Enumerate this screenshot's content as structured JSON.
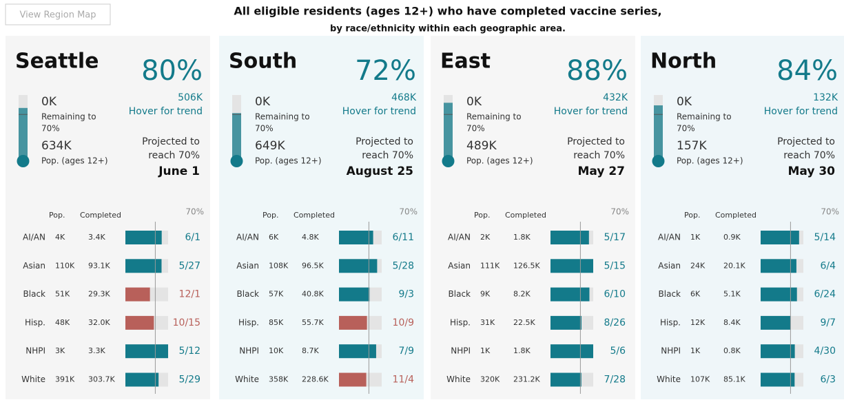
{
  "header": {
    "button": "View Region Map",
    "title": "All eligible residents (ages 12+) who have completed vaccine series,",
    "subtitle": "by race/ethnicity within each geographic area."
  },
  "labels": {
    "hover": "Hover for trend",
    "remaining": "Remaining to",
    "pop_ages": "Pop. (ages 12+)",
    "projected": "Projected to",
    "reach": "reach 70%",
    "pop": "Pop.",
    "completed": "Completed"
  },
  "target": {
    "value": 70,
    "label": "70%"
  },
  "colors": {
    "on_track": "#137a8a",
    "late": "#b8605a",
    "track": "#e4e4e4"
  },
  "regions": [
    {
      "name": "Seattle",
      "pct": 80,
      "pct_label": "80%",
      "remaining": "0K",
      "completed_total": "506K",
      "population": "634K",
      "date": "June 1",
      "background": "#f5f5f5",
      "rows": [
        {
          "group": "AI/AN",
          "pop": 4000,
          "pop_label": "4K",
          "completed": 3400,
          "completed_label": "3.4K",
          "date": "6/1",
          "status": "on_track"
        },
        {
          "group": "Asian",
          "pop": 110000,
          "pop_label": "110K",
          "completed": 93100,
          "completed_label": "93.1K",
          "date": "5/27",
          "status": "on_track"
        },
        {
          "group": "Black",
          "pop": 51000,
          "pop_label": "51K",
          "completed": 29300,
          "completed_label": "29.3K",
          "date": "12/1",
          "status": "late"
        },
        {
          "group": "Hisp.",
          "pop": 48000,
          "pop_label": "48K",
          "completed": 32000,
          "completed_label": "32.0K",
          "date": "10/15",
          "status": "late"
        },
        {
          "group": "NHPI",
          "pop": 3000,
          "pop_label": "3K",
          "completed": 3300,
          "completed_label": "3.3K",
          "date": "5/12",
          "status": "on_track"
        },
        {
          "group": "White",
          "pop": 391000,
          "pop_label": "391K",
          "completed": 303700,
          "completed_label": "303.7K",
          "date": "5/29",
          "status": "on_track"
        }
      ]
    },
    {
      "name": "South",
      "pct": 72,
      "pct_label": "72%",
      "remaining": "0K",
      "completed_total": "468K",
      "population": "649K",
      "date": "August 25",
      "background": "#eff7f9",
      "rows": [
        {
          "group": "AI/AN",
          "pop": 6000,
          "pop_label": "6K",
          "completed": 4800,
          "completed_label": "4.8K",
          "date": "6/11",
          "status": "on_track"
        },
        {
          "group": "Asian",
          "pop": 108000,
          "pop_label": "108K",
          "completed": 96500,
          "completed_label": "96.5K",
          "date": "5/28",
          "status": "on_track"
        },
        {
          "group": "Black",
          "pop": 57000,
          "pop_label": "57K",
          "completed": 40800,
          "completed_label": "40.8K",
          "date": "9/3",
          "status": "on_track"
        },
        {
          "group": "Hisp.",
          "pop": 85000,
          "pop_label": "85K",
          "completed": 55700,
          "completed_label": "55.7K",
          "date": "10/9",
          "status": "late"
        },
        {
          "group": "NHPI",
          "pop": 10000,
          "pop_label": "10K",
          "completed": 8700,
          "completed_label": "8.7K",
          "date": "7/9",
          "status": "on_track"
        },
        {
          "group": "White",
          "pop": 358000,
          "pop_label": "358K",
          "completed": 228600,
          "completed_label": "228.6K",
          "date": "11/4",
          "status": "late"
        }
      ]
    },
    {
      "name": "East",
      "pct": 88,
      "pct_label": "88%",
      "remaining": "0K",
      "completed_total": "432K",
      "population": "489K",
      "date": "May 27",
      "background": "#f6f6f6",
      "rows": [
        {
          "group": "AI/AN",
          "pop": 2000,
          "pop_label": "2K",
          "completed": 1800,
          "completed_label": "1.8K",
          "date": "5/17",
          "status": "on_track"
        },
        {
          "group": "Asian",
          "pop": 111000,
          "pop_label": "111K",
          "completed": 126500,
          "completed_label": "126.5K",
          "date": "5/15",
          "status": "on_track"
        },
        {
          "group": "Black",
          "pop": 9000,
          "pop_label": "9K",
          "completed": 8200,
          "completed_label": "8.2K",
          "date": "6/10",
          "status": "on_track"
        },
        {
          "group": "Hisp.",
          "pop": 31000,
          "pop_label": "31K",
          "completed": 22500,
          "completed_label": "22.5K",
          "date": "8/26",
          "status": "on_track"
        },
        {
          "group": "NHPI",
          "pop": 1000,
          "pop_label": "1K",
          "completed": 1800,
          "completed_label": "1.8K",
          "date": "5/6",
          "status": "on_track"
        },
        {
          "group": "White",
          "pop": 320000,
          "pop_label": "320K",
          "completed": 231200,
          "completed_label": "231.2K",
          "date": "7/28",
          "status": "on_track"
        }
      ]
    },
    {
      "name": "North",
      "pct": 84,
      "pct_label": "84%",
      "remaining": "0K",
      "completed_total": "132K",
      "population": "157K",
      "date": "May 30",
      "background": "#eff6f9",
      "rows": [
        {
          "group": "AI/AN",
          "pop": 1000,
          "pop_label": "1K",
          "completed": 900,
          "completed_label": "0.9K",
          "date": "5/14",
          "status": "on_track"
        },
        {
          "group": "Asian",
          "pop": 24000,
          "pop_label": "24K",
          "completed": 20100,
          "completed_label": "20.1K",
          "date": "6/4",
          "status": "on_track"
        },
        {
          "group": "Black",
          "pop": 6000,
          "pop_label": "6K",
          "completed": 5100,
          "completed_label": "5.1K",
          "date": "6/24",
          "status": "on_track"
        },
        {
          "group": "Hisp.",
          "pop": 12000,
          "pop_label": "12K",
          "completed": 8400,
          "completed_label": "8.4K",
          "date": "9/7",
          "status": "on_track"
        },
        {
          "group": "NHPI",
          "pop": 1000,
          "pop_label": "1K",
          "completed": 800,
          "completed_label": "0.8K",
          "date": "4/30",
          "status": "on_track"
        },
        {
          "group": "White",
          "pop": 107000,
          "pop_label": "107K",
          "completed": 85100,
          "completed_label": "85.1K",
          "date": "6/3",
          "status": "on_track"
        }
      ]
    }
  ]
}
